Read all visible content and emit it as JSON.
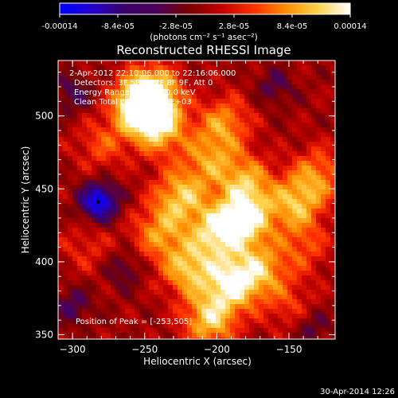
{
  "colorbar": {
    "tick_labels": [
      "-0.00014",
      "-8.4e-05",
      "-2.8e-05",
      "2.8e-05",
      "8.4e-05",
      "0.00014"
    ],
    "tick_values": [
      -0.00014,
      -8.4e-05,
      -2.8e-05,
      2.8e-05,
      8.4e-05,
      0.00014
    ],
    "range": [
      -0.00014,
      0.00014
    ],
    "units": "(photons cm⁻² s⁻¹ asec⁻²)",
    "stops": [
      "#0000ff",
      "#2200cc",
      "#3a006b",
      "#4b0057",
      "#7a0000",
      "#c00000",
      "#ff3000",
      "#ff8c00",
      "#ffd24a",
      "#ffffff"
    ]
  },
  "chart_data": {
    "type": "heatmap",
    "title": "Reconstructed RHESSI Image",
    "xlabel": "Heliocentric X (arcsec)",
    "ylabel": "Heliocentric Y (arcsec)",
    "xlim": [
      -310,
      -118
    ],
    "ylim": [
      347,
      538
    ],
    "x_ticks": [
      -300,
      -250,
      -200,
      -150
    ],
    "y_ticks": [
      350,
      400,
      450,
      500
    ],
    "x_tick_labels": [
      "−300",
      "−250",
      "−200",
      "−150"
    ],
    "y_tick_labels": [
      "350",
      "400",
      "450",
      "500"
    ],
    "annotations": [
      "2-Apr-2012 22:10:06.000 to 22:16:06.000",
      "Detectors: 3F 5F 6F 7F 8F 9F, Att 0",
      "Energy Range: 25.0 - 50.0 keV",
      "Clean   Total counts: 5.20E+03"
    ],
    "peak_label": "Position of Peak = [-253,505]",
    "peak": {
      "x": -253,
      "y": 505
    },
    "min_marker": {
      "x": -282,
      "y": 441
    },
    "hotspots": [
      {
        "x": -245,
        "y": 515,
        "v": 0.9
      },
      {
        "x": -253,
        "y": 505,
        "v": 1.0
      },
      {
        "x": -238,
        "y": 490,
        "v": 0.6
      },
      {
        "x": -195,
        "y": 495,
        "v": 0.55
      },
      {
        "x": -205,
        "y": 470,
        "v": 0.5
      },
      {
        "x": -180,
        "y": 455,
        "v": 0.6
      },
      {
        "x": -225,
        "y": 445,
        "v": 0.7
      },
      {
        "x": -180,
        "y": 430,
        "v": 0.9
      },
      {
        "x": -200,
        "y": 420,
        "v": 0.8
      },
      {
        "x": -145,
        "y": 440,
        "v": 0.65
      },
      {
        "x": -130,
        "y": 460,
        "v": 0.5
      },
      {
        "x": -240,
        "y": 420,
        "v": 0.55
      },
      {
        "x": -220,
        "y": 395,
        "v": 0.7
      },
      {
        "x": -190,
        "y": 385,
        "v": 0.85
      },
      {
        "x": -170,
        "y": 395,
        "v": 0.6
      },
      {
        "x": -205,
        "y": 360,
        "v": 0.75
      },
      {
        "x": -280,
        "y": 480,
        "v": 0.35
      },
      {
        "x": -290,
        "y": 410,
        "v": 0.25
      },
      {
        "x": -150,
        "y": 370,
        "v": 0.3
      },
      {
        "x": -140,
        "y": 410,
        "v": 0.35
      }
    ],
    "coldspots": [
      {
        "x": -282,
        "y": 441,
        "v": -1.0
      },
      {
        "x": -300,
        "y": 515,
        "v": -0.35
      },
      {
        "x": -160,
        "y": 520,
        "v": -0.3
      },
      {
        "x": -300,
        "y": 370,
        "v": -0.35
      },
      {
        "x": -135,
        "y": 355,
        "v": -0.3
      },
      {
        "x": -265,
        "y": 395,
        "v": -0.3
      }
    ]
  },
  "footer": {
    "timestamp": "30-Apr-2014 12:26"
  }
}
